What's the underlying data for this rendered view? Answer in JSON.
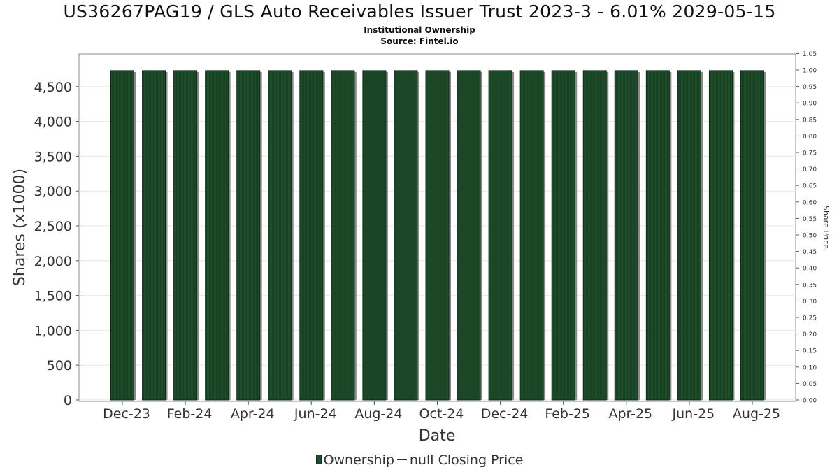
{
  "chart_data": {
    "type": "bar",
    "title": "US36267PAG19 / GLS Auto Receivables Issuer Trust 2023-3 - 6.01% 2029-05-15",
    "subtitle": "Institutional Ownership",
    "source": "Source: Fintel.io",
    "xlabel": "Date",
    "ylabel": "Shares (x1000)",
    "y2label": "Share Price",
    "ylim": [
      0,
      4750
    ],
    "y2lim": [
      0,
      1.05
    ],
    "yticks": [
      "0",
      "500",
      "1,000",
      "1,500",
      "2,000",
      "2,500",
      "3,000",
      "3,500",
      "4,000",
      "4,500"
    ],
    "y2ticks": [
      "0.00",
      "0.05",
      "0.10",
      "0.15",
      "0.20",
      "0.25",
      "0.30",
      "0.35",
      "0.40",
      "0.45",
      "0.50",
      "0.55",
      "0.60",
      "0.65",
      "0.70",
      "0.75",
      "0.80",
      "0.85",
      "0.90",
      "0.95",
      "1.00",
      "1.05"
    ],
    "xticks": [
      "Dec-23",
      "Feb-24",
      "Apr-24",
      "Jun-24",
      "Aug-24",
      "Oct-24",
      "Dec-24",
      "Feb-25",
      "Apr-25",
      "Jun-25",
      "Aug-25"
    ],
    "categories": [
      "Dec-23",
      "Jan-24",
      "Feb-24",
      "Mar-24",
      "Apr-24",
      "May-24",
      "Jun-24",
      "Jul-24",
      "Aug-24",
      "Sep-24",
      "Oct-24",
      "Nov-24",
      "Dec-24",
      "Jan-25",
      "Feb-25",
      "Mar-25",
      "Apr-25",
      "May-25",
      "Jun-25",
      "Jul-25",
      "Aug-25"
    ],
    "series": [
      {
        "name": "Ownership",
        "values": [
          4730,
          4730,
          4730,
          4730,
          4730,
          4730,
          4730,
          4730,
          4730,
          4730,
          4730,
          4730,
          4730,
          4730,
          4730,
          4730,
          4730,
          4730,
          4730,
          4730,
          4730
        ]
      }
    ],
    "legend": [
      {
        "label": "Ownership"
      },
      {
        "label": "null Closing Price"
      }
    ],
    "legend_position": "bottom",
    "grid": true,
    "colors": {
      "bar": "#1e4d2b",
      "bar_edge": "#0f2a16",
      "bar_shadow": "#8a8a8a",
      "grid": "#e6e6e6"
    }
  }
}
